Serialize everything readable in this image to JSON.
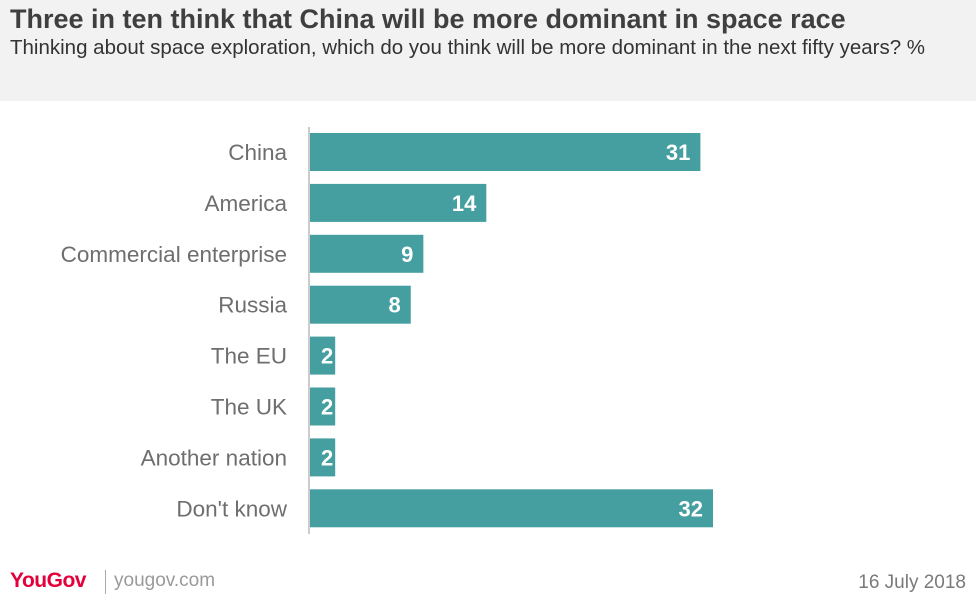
{
  "header": {
    "title": "Three in ten think that China will be more dominant in space race",
    "subtitle": "Thinking about space exploration, which do you think will be more dominant in the next fifty years? %"
  },
  "chart_data": {
    "type": "bar",
    "orientation": "horizontal",
    "categories": [
      "China",
      "America",
      "Commercial enterprise",
      "Russia",
      "The EU",
      "The UK",
      "Another nation",
      "Don't know"
    ],
    "values": [
      31,
      14,
      9,
      8,
      2,
      2,
      2,
      32
    ],
    "value_labels": [
      "31",
      "14",
      "9",
      "8",
      "2",
      "2",
      "2",
      "32"
    ],
    "title": "Three in ten think that China will be more dominant in space race",
    "subtitle": "Thinking about space exploration, which do you think will be more dominant in the next fifty years? %",
    "xlim": [
      0,
      32
    ],
    "grid": false,
    "bar_color": "#459e9f"
  },
  "footer": {
    "brand": "YouGov",
    "website": "yougov.com",
    "date": "16 July 2018",
    "brand_color": "#e4003b"
  }
}
